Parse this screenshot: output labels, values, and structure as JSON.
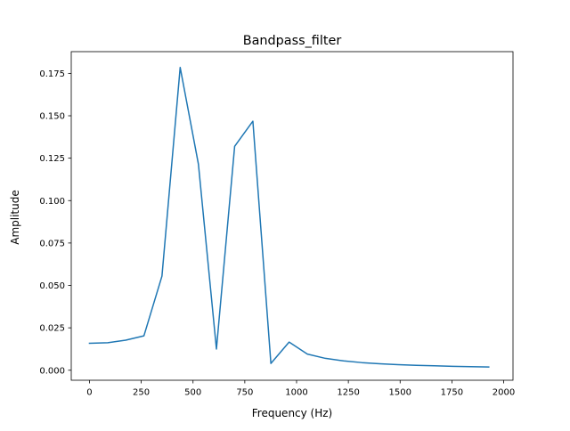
{
  "chart_data": {
    "type": "line",
    "title": "Bandpass_filter",
    "xlabel": "Frequency (Hz)",
    "ylabel": "Amplitude",
    "xlim": [
      -88,
      2045
    ],
    "ylim": [
      -0.0059,
      0.1878
    ],
    "xticks": [
      0,
      250,
      500,
      750,
      1000,
      1250,
      1500,
      1750,
      2000
    ],
    "xtick_labels": [
      "0",
      "250",
      "500",
      "750",
      "1000",
      "1250",
      "1500",
      "1750",
      "2000"
    ],
    "yticks": [
      0.0,
      0.025,
      0.05,
      0.075,
      0.1,
      0.125,
      0.15,
      0.175
    ],
    "ytick_labels": [
      "0.000",
      "0.025",
      "0.050",
      "0.075",
      "0.100",
      "0.125",
      "0.150",
      "0.175"
    ],
    "grid": false,
    "series": [
      {
        "color": "#1f77b4",
        "x": [
          0,
          88,
          175,
          263,
          350,
          438,
          526,
          613,
          701,
          789,
          876,
          964,
          1052,
          1139,
          1227,
          1315,
          1402,
          1490,
          1578,
          1665,
          1753,
          1841,
          1928
        ],
        "y": [
          0.0159,
          0.0162,
          0.0177,
          0.0203,
          0.0555,
          0.1785,
          0.1215,
          0.0125,
          0.132,
          0.1468,
          0.004,
          0.0166,
          0.0095,
          0.007,
          0.0055,
          0.0045,
          0.0038,
          0.0033,
          0.0029,
          0.0026,
          0.0023,
          0.0021,
          0.0019
        ]
      }
    ]
  }
}
